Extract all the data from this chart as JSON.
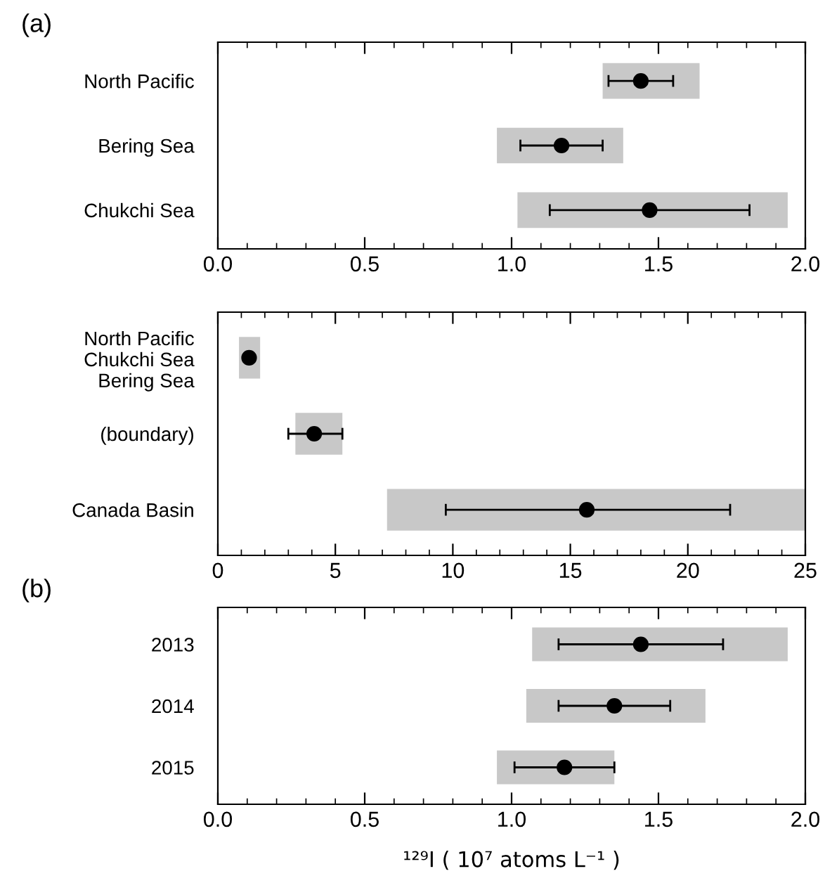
{
  "chart_data": [
    {
      "type": "bar",
      "orientation": "horizontal",
      "annotations": [
        "(a)"
      ],
      "categories": [
        "North Pacific",
        "Bering Sea",
        "Chukchi Sea"
      ],
      "xlim": [
        0,
        2.0
      ],
      "xticks": [
        {
          "value": 0,
          "label": "0.0"
        },
        0.5,
        {
          "value": 1,
          "label": "1.0"
        },
        1.5,
        {
          "value": 2,
          "label": "2.0"
        }
      ],
      "grid": false,
      "legend": false,
      "series": [
        {
          "color": "#c8c8c8",
          "base": [
            1.31,
            0.95,
            1.02
          ],
          "values": [
            0.33,
            0.43,
            0.92
          ]
        },
        {
          "type": "scatter",
          "color": "#000000",
          "marker": "circle",
          "values": [
            1.44,
            1.17,
            1.47
          ],
          "errors": [
            [
              1.33,
              1.55
            ],
            [
              1.03,
              1.31
            ],
            [
              1.13,
              1.81
            ]
          ]
        }
      ]
    },
    {
      "type": "bar",
      "orientation": "horizontal",
      "categories": [
        "North Pacific\nChukchi Sea\nBering Sea",
        "(boundary)",
        "Canada Basin"
      ],
      "xlim": [
        0,
        25
      ],
      "xticks": [
        0,
        5,
        10,
        15,
        20,
        25
      ],
      "grid": false,
      "legend": false,
      "series": [
        {
          "color": "#c8c8c8",
          "base": [
            0.9,
            3.3,
            7.2
          ],
          "values": [
            0.9,
            2.0,
            17.8
          ]
        },
        {
          "type": "scatter",
          "color": "#000000",
          "marker": "circle",
          "values": [
            1.33,
            4.1,
            15.7
          ],
          "errors": [
            null,
            [
              3.0,
              5.3
            ],
            [
              9.7,
              21.8
            ]
          ]
        }
      ]
    },
    {
      "type": "bar",
      "orientation": "horizontal",
      "annotations": [
        "(b)"
      ],
      "xlabel": "¹²⁹I ( 10⁷ atoms L⁻¹ )",
      "categories": [
        "2013",
        "2014",
        "2015"
      ],
      "xlim": [
        0,
        2.0
      ],
      "xticks": [
        {
          "value": 0,
          "label": "0.0"
        },
        0.5,
        {
          "value": 1,
          "label": "1.0"
        },
        1.5,
        {
          "value": 2,
          "label": "2.0"
        }
      ],
      "grid": false,
      "legend": false,
      "series": [
        {
          "color": "#c8c8c8",
          "base": [
            1.07,
            1.05,
            0.95
          ],
          "values": [
            0.87,
            0.61,
            0.4
          ]
        },
        {
          "type": "scatter",
          "color": "#000000",
          "marker": "circle",
          "values": [
            1.44,
            1.35,
            1.18
          ],
          "errors": [
            [
              1.16,
              1.72
            ],
            [
              1.16,
              1.54
            ],
            [
              1.01,
              1.35
            ]
          ]
        }
      ]
    }
  ]
}
